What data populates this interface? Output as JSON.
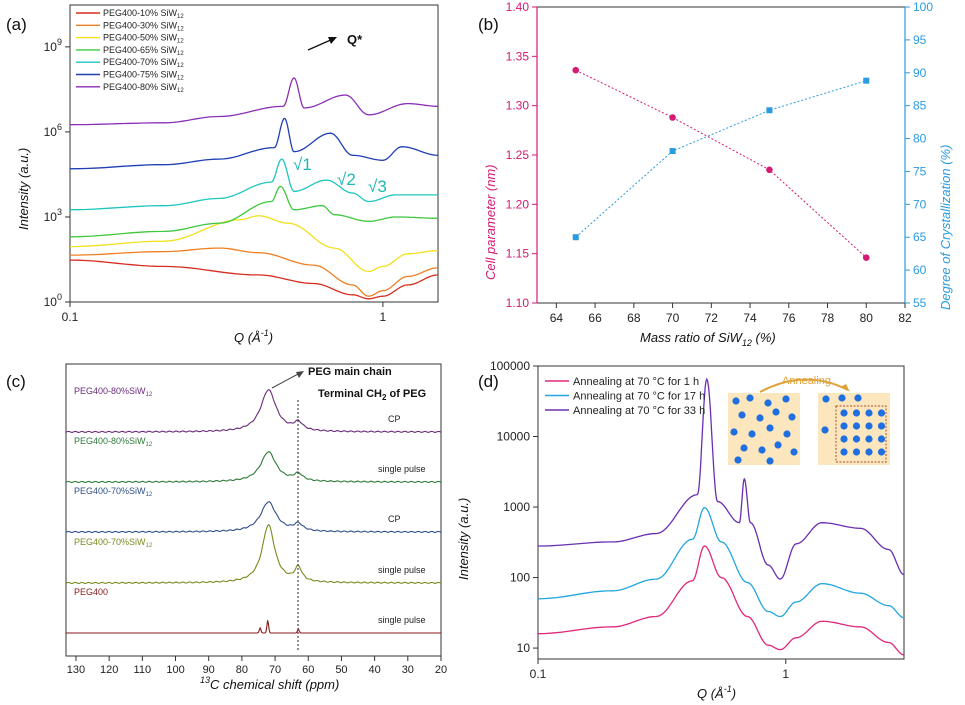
{
  "panel_a": {
    "label": "(a)",
    "xlabel": "Q (Å",
    "xlabel_sup": "-1",
    "xlabel_end": ")",
    "ylabel": "Intensity (a.u.)",
    "x_ticks": [
      "0.1",
      "1"
    ],
    "y_ticks": [
      {
        "base": "10",
        "exp": "0"
      },
      {
        "base": "10",
        "exp": "3"
      },
      {
        "base": "10",
        "exp": "6"
      },
      {
        "base": "10",
        "exp": "9"
      }
    ],
    "legend": [
      {
        "name": "PEG400-10% SiW",
        "sub": "12",
        "color": "#d62d1f"
      },
      {
        "name": "PEG400-30% SiW",
        "sub": "12",
        "color": "#f07f22"
      },
      {
        "name": "PEG400-50% SiW",
        "sub": "12",
        "color": "#f2e01f"
      },
      {
        "name": "PEG400-65% SiW",
        "sub": "12",
        "color": "#3fc83f"
      },
      {
        "name": "PEG400-70% SiW",
        "sub": "12",
        "color": "#1fc6c0"
      },
      {
        "name": "PEG400-75% SiW",
        "sub": "12",
        "color": "#1f3fb4"
      },
      {
        "name": "PEG400-80% SiW",
        "sub": "12",
        "color": "#8a2fb8"
      }
    ],
    "annotations": {
      "qstar": "Q*",
      "root1": "√1",
      "root2": "√2",
      "root3": "√3"
    }
  },
  "panel_b": {
    "label": "(b)",
    "xlabel": "Mass ratio of SiW",
    "xlabel_sub": "12",
    "xlabel_end": " (%)",
    "ylabel_left": "Cell parameter (nm)",
    "ylabel_right": "Degree of Crystallization (%)",
    "x_ticks": [
      "64",
      "66",
      "68",
      "70",
      "72",
      "74",
      "76",
      "78",
      "80",
      "82"
    ],
    "y_left_ticks": [
      "1.10",
      "1.15",
      "1.20",
      "1.25",
      "1.30",
      "1.35",
      "1.40"
    ],
    "y_right_ticks": [
      "55",
      "60",
      "65",
      "70",
      "75",
      "80",
      "85",
      "90",
      "95",
      "100"
    ],
    "left_color": "#d41a73",
    "right_color": "#2b9be0"
  },
  "panel_c": {
    "label": "(c)",
    "xlabel": "C chemical shift (ppm)",
    "xlabel_sup": "13",
    "x_ticks": [
      "130",
      "120",
      "110",
      "100",
      "90",
      "80",
      "70",
      "60",
      "50",
      "40",
      "30",
      "20"
    ],
    "ann_main": "PEG main chain",
    "ann_term_a": "Terminal CH",
    "ann_term_sub": "2",
    "ann_term_b": " of PEG",
    "spectra": [
      {
        "name": "PEG400-80%SiW",
        "sub": "12",
        "method": "CP",
        "color": "#6b2a7a"
      },
      {
        "name": "PEG400-80%SiW",
        "sub": "12",
        "method": "single pulse",
        "color": "#2f7a3a"
      },
      {
        "name": "PEG400-70%SiW",
        "sub": "12",
        "method": "CP",
        "color": "#2f4f8a"
      },
      {
        "name": "PEG400-70%SiW",
        "sub": "12",
        "method": "single pulse",
        "color": "#7a8a1f"
      },
      {
        "name": "PEG400",
        "sub": "",
        "method": "single pulse",
        "color": "#8a1a1a"
      }
    ]
  },
  "panel_d": {
    "label": "(d)",
    "xlabel": "Q (Å",
    "xlabel_sup": "-1",
    "xlabel_end": ")",
    "ylabel": "Intensity (a.u.)",
    "x_ticks": [
      "0.1",
      "1"
    ],
    "y_ticks": [
      "10",
      "100",
      "1000",
      "10000",
      "100000"
    ],
    "legend": [
      {
        "name": "Annealing at 70 °C for 1 h",
        "color": "#e0287a"
      },
      {
        "name": "Annealing at 70 °C for 17 h",
        "color": "#22a6e0"
      },
      {
        "name": "Annealing at 70 °C for 33 h",
        "color": "#6a2fb0"
      }
    ],
    "inset_label": "Annealing"
  },
  "chart_data": [
    {
      "type": "line",
      "panel": "a",
      "title": "",
      "xlabel": "Q (Å^-1)",
      "ylabel": "Intensity (a.u.)",
      "xscale": "log",
      "yscale": "log",
      "xlim": [
        0.1,
        1.5
      ],
      "ylim": [
        1,
        30000000000
      ],
      "series": [
        {
          "name": "PEG400-10% SiW12",
          "x": [
            0.1,
            0.2,
            0.4,
            0.6,
            0.8,
            0.9,
            1.0,
            1.2,
            1.5
          ],
          "y": [
            30,
            18,
            9,
            4.5,
            1.8,
            1.3,
            1.6,
            4,
            9
          ]
        },
        {
          "name": "PEG400-30% SiW12",
          "x": [
            0.1,
            0.2,
            0.3,
            0.4,
            0.6,
            0.8,
            0.9,
            1.0,
            1.2,
            1.5
          ],
          "y": [
            45,
            60,
            80,
            55,
            20,
            4,
            1.6,
            2.5,
            8,
            16
          ]
        },
        {
          "name": "PEG400-50% SiW12",
          "x": [
            0.1,
            0.2,
            0.35,
            0.4,
            0.5,
            0.7,
            0.9,
            1.0,
            1.2,
            1.5
          ],
          "y": [
            90,
            140,
            800,
            1100,
            600,
            80,
            12,
            18,
            50,
            65
          ]
        },
        {
          "name": "PEG400-65% SiW12",
          "x": [
            0.1,
            0.2,
            0.3,
            0.44,
            0.47,
            0.52,
            0.64,
            0.7,
            0.9,
            1.1,
            1.5
          ],
          "y": [
            200,
            310,
            600,
            3500,
            12000,
            1800,
            2500,
            1200,
            700,
            1000,
            900
          ]
        },
        {
          "name": "PEG400-70% SiW12",
          "x": [
            0.1,
            0.2,
            0.3,
            0.44,
            0.475,
            0.52,
            0.66,
            0.8,
            0.9,
            1.1,
            1.5
          ],
          "y": [
            1800,
            2500,
            4500,
            17000,
            110000,
            8000,
            20000,
            7000,
            3500,
            6000,
            6000
          ]
        },
        {
          "name": "PEG400-75% SiW12",
          "x": [
            0.1,
            0.2,
            0.3,
            0.45,
            0.485,
            0.52,
            0.68,
            0.8,
            1.0,
            1.15,
            1.5
          ],
          "y": [
            50000,
            70000,
            110000,
            280000,
            3000000,
            200000,
            900000,
            150000,
            100000,
            300000,
            150000
          ]
        },
        {
          "name": "PEG400-80% SiW12",
          "x": [
            0.1,
            0.2,
            0.3,
            0.48,
            0.52,
            0.56,
            0.76,
            0.9,
            1.2,
            1.5
          ],
          "y": [
            1800000,
            2100000,
            3500000,
            8000000,
            80000000,
            7000000,
            20000000,
            4000000,
            10000000,
            8000000
          ]
        }
      ]
    },
    {
      "type": "scatter",
      "panel": "b",
      "xlabel": "Mass ratio of SiW12 (%)",
      "ylabel": "Cell parameter (nm)",
      "ylabel_right": "Degree of Crystallization (%)",
      "xlim": [
        63,
        82
      ],
      "ylim": [
        1.1,
        1.4
      ],
      "ylim_right": [
        55,
        100
      ],
      "series": [
        {
          "name": "Cell parameter",
          "axis": "left",
          "x": [
            65,
            70,
            75,
            80
          ],
          "y": [
            1.336,
            1.288,
            1.235,
            1.146
          ]
        },
        {
          "name": "Degree of Crystallization",
          "axis": "right",
          "x": [
            65,
            70,
            75,
            80
          ],
          "y": [
            65.0,
            78.1,
            84.3,
            88.8
          ]
        }
      ]
    },
    {
      "type": "line",
      "panel": "c",
      "xlabel": "13C chemical shift (ppm)",
      "xlim": [
        133,
        20
      ],
      "series": [
        {
          "name": "PEG400-80%SiW12 CP",
          "peaks_ppm": [
            72,
            63
          ]
        },
        {
          "name": "PEG400-80%SiW12 single pulse",
          "peaks_ppm": [
            72,
            63
          ]
        },
        {
          "name": "PEG400-70%SiW12 CP",
          "peaks_ppm": [
            72,
            63
          ]
        },
        {
          "name": "PEG400-70%SiW12 single pulse",
          "peaks_ppm": [
            72,
            63
          ]
        },
        {
          "name": "PEG400 single pulse",
          "peaks_ppm": [
            74,
            72,
            63
          ]
        }
      ]
    },
    {
      "type": "line",
      "panel": "d",
      "xlabel": "Q (Å^-1)",
      "ylabel": "Intensity (a.u.)",
      "xscale": "log",
      "yscale": "log",
      "xlim": [
        0.1,
        3
      ],
      "ylim": [
        7,
        100000
      ],
      "series": [
        {
          "name": "Annealing at 70 °C for 1 h",
          "x": [
            0.1,
            0.2,
            0.3,
            0.42,
            0.47,
            0.55,
            0.7,
            0.85,
            0.95,
            1.1,
            1.4,
            2.0,
            2.6,
            3.0
          ],
          "y": [
            16,
            20,
            28,
            90,
            280,
            100,
            28,
            11,
            9.5,
            14,
            24,
            20,
            12,
            8
          ]
        },
        {
          "name": "Annealing at 70 °C for 17 h",
          "x": [
            0.1,
            0.2,
            0.3,
            0.42,
            0.47,
            0.55,
            0.7,
            0.85,
            0.95,
            1.1,
            1.4,
            2.0,
            2.6,
            3.0
          ],
          "y": [
            50,
            65,
            95,
            350,
            980,
            320,
            85,
            33,
            28,
            45,
            82,
            60,
            40,
            27
          ]
        },
        {
          "name": "Annealing at 70 °C for 33 h",
          "x": [
            0.1,
            0.2,
            0.3,
            0.44,
            0.48,
            0.53,
            0.65,
            0.68,
            0.72,
            0.85,
            0.95,
            1.1,
            1.4,
            2.0,
            2.6,
            3.0
          ],
          "y": [
            280,
            320,
            420,
            1500,
            65000,
            1200,
            600,
            2500,
            600,
            150,
            95,
            300,
            600,
            500,
            250,
            110
          ]
        }
      ]
    }
  ]
}
